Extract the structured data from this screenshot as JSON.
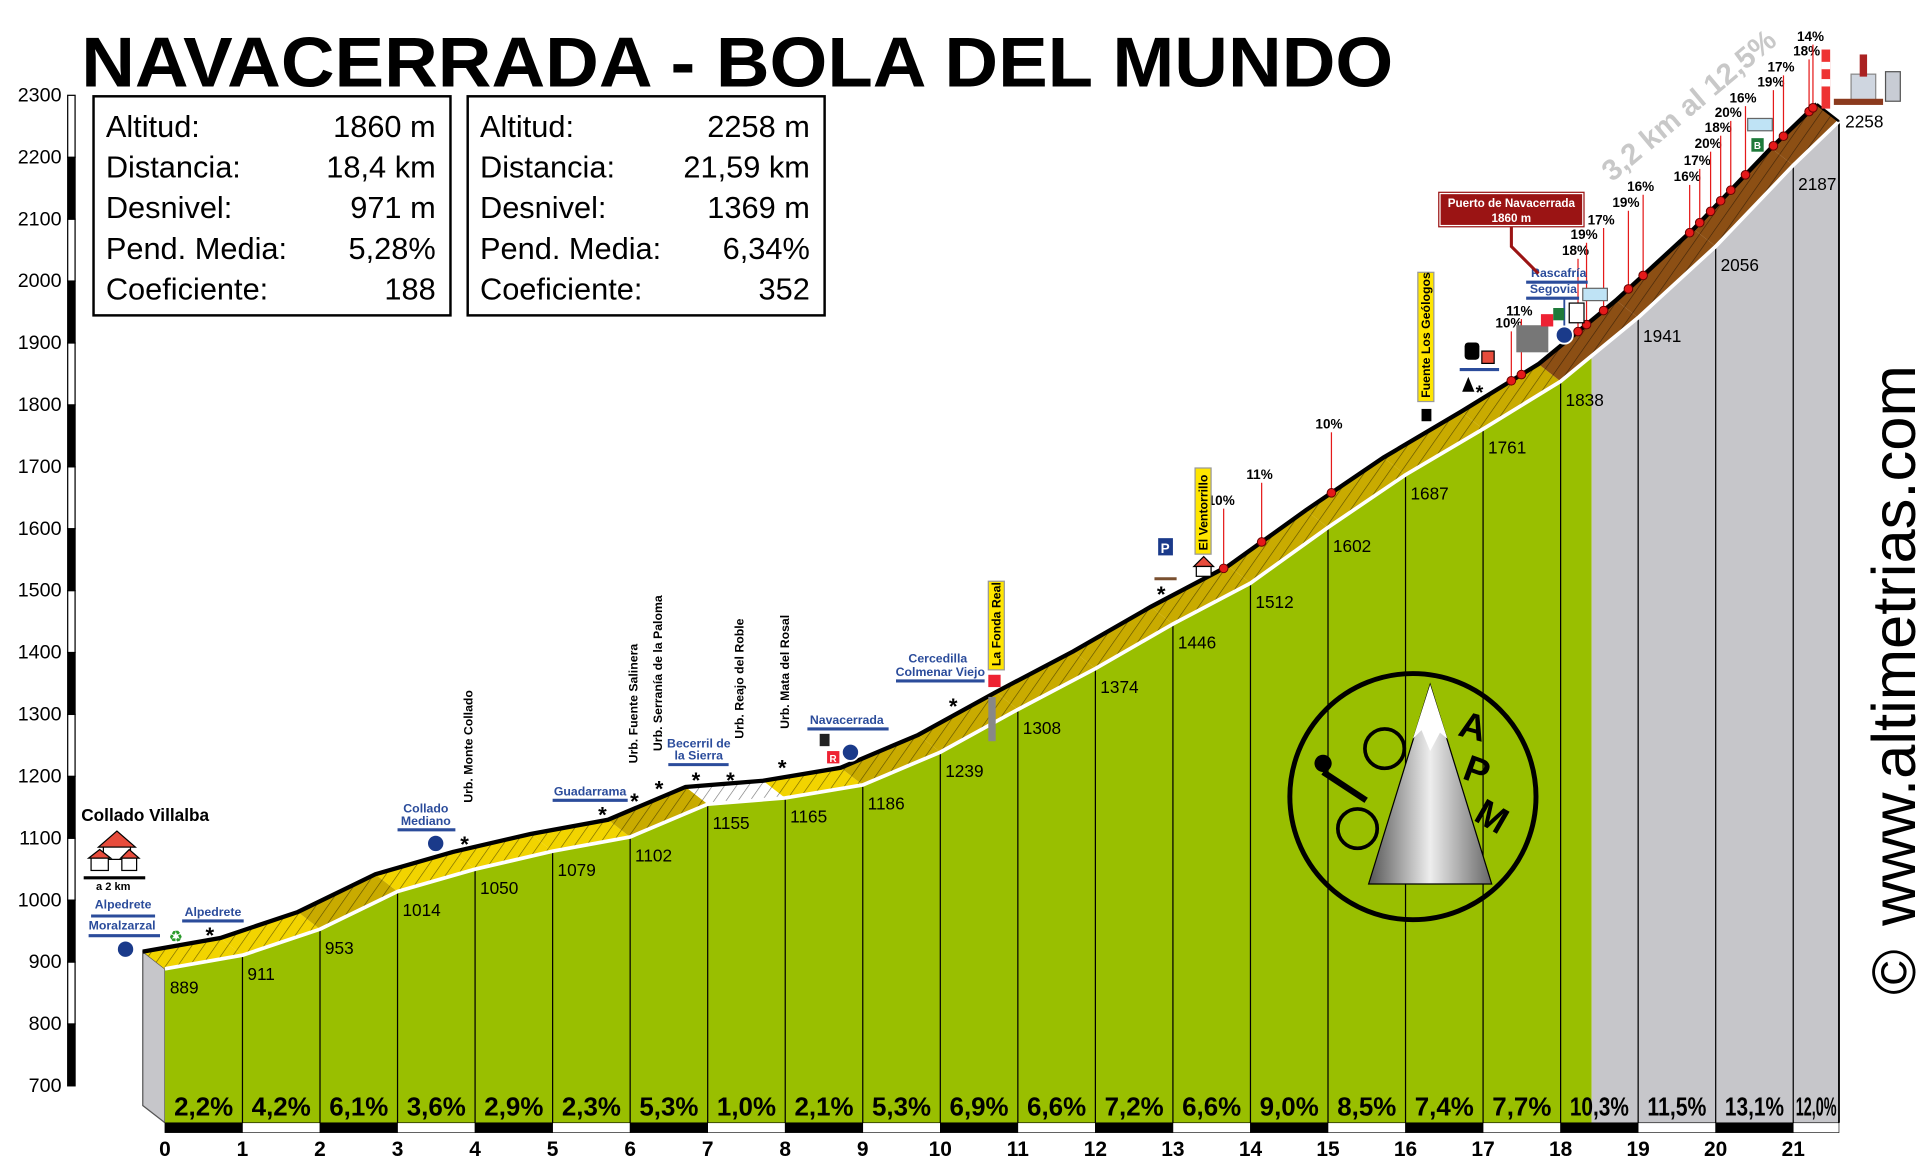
{
  "title": "NAVACERRADA - BOLA DEL MUNDO",
  "stats": [
    {
      "rows": [
        {
          "label": "Altitud:",
          "value": "1860 m"
        },
        {
          "label": "Distancia:",
          "value": "18,4 km"
        },
        {
          "label": "Desnivel:",
          "value": "971 m"
        },
        {
          "label": "Pend. Media:",
          "value": "5,28%"
        },
        {
          "label": "Coeficiente:",
          "value": "188"
        }
      ]
    },
    {
      "rows": [
        {
          "label": "Altitud:",
          "value": "2258 m"
        },
        {
          "label": "Distancia:",
          "value": "21,59 km"
        },
        {
          "label": "Desnivel:",
          "value": "1369 m"
        },
        {
          "label": "Pend. Media:",
          "value": "6,34%"
        },
        {
          "label": "Coeficiente:",
          "value": "352"
        }
      ]
    }
  ],
  "chart_data": {
    "type": "area",
    "title": "NAVACERRADA - BOLA DEL MUNDO",
    "xlabel": "",
    "ylabel": "",
    "xlim": [
      0,
      21.59
    ],
    "ylim": [
      700,
      2300
    ],
    "grid": false,
    "y_ticks": [
      700,
      800,
      900,
      1000,
      1100,
      1200,
      1300,
      1400,
      1500,
      1600,
      1700,
      1800,
      1900,
      2000,
      2100,
      2200,
      2300
    ],
    "x_ticks": [
      0,
      1,
      2,
      3,
      4,
      5,
      6,
      7,
      8,
      9,
      10,
      11,
      12,
      13,
      14,
      15,
      16,
      17,
      18,
      19,
      20,
      21
    ],
    "km": [
      0,
      1,
      2,
      3,
      4,
      5,
      6,
      7,
      8,
      9,
      10,
      11,
      12,
      13,
      14,
      15,
      16,
      17,
      18,
      19,
      20,
      21,
      21.59
    ],
    "elevation": [
      889,
      911,
      953,
      1014,
      1050,
      1079,
      1102,
      1155,
      1165,
      1186,
      1239,
      1308,
      1374,
      1446,
      1512,
      1602,
      1687,
      1761,
      1838,
      1941,
      2056,
      2187,
      2258
    ],
    "segment_gradients": [
      2.2,
      4.2,
      6.1,
      3.6,
      2.9,
      2.3,
      5.3,
      1.0,
      2.1,
      5.3,
      6.9,
      6.6,
      7.2,
      6.6,
      9.0,
      8.5,
      7.4,
      7.7,
      10.3,
      11.5,
      13.1,
      12.0
    ],
    "segment_gradient_labels": [
      "2,2%",
      "4,2%",
      "6,1%",
      "3,6%",
      "2,9%",
      "2,3%",
      "5,3%",
      "1,0%",
      "2,1%",
      "5,3%",
      "6,9%",
      "6,6%",
      "7,2%",
      "6,6%",
      "9,0%",
      "8,5%",
      "7,4%",
      "7,7%",
      "10,3%",
      "11,5%",
      "13,1%",
      "12,0%"
    ],
    "climb_split_km": 18.4,
    "steep_points": [
      {
        "km": 13.94,
        "label": "10%"
      },
      {
        "km": 14.43,
        "label": "11%"
      },
      {
        "km": 15.33,
        "label": "10%"
      },
      {
        "km": 17.65,
        "label": "10%"
      },
      {
        "km": 17.78,
        "label": "11%"
      },
      {
        "km": 18.51,
        "label": "18%"
      },
      {
        "km": 18.62,
        "label": "19%"
      },
      {
        "km": 18.84,
        "label": "17%"
      },
      {
        "km": 19.16,
        "label": "19%"
      },
      {
        "km": 19.35,
        "label": "16%"
      },
      {
        "km": 19.95,
        "label": "16%"
      },
      {
        "km": 20.08,
        "label": "17%"
      },
      {
        "km": 20.22,
        "label": "20%"
      },
      {
        "km": 20.35,
        "label": "18%"
      },
      {
        "km": 20.48,
        "label": "20%"
      },
      {
        "km": 20.67,
        "label": "16%"
      },
      {
        "km": 21.03,
        "label": "19%"
      },
      {
        "km": 21.16,
        "label": "17%"
      },
      {
        "km": 21.49,
        "label": "18%"
      },
      {
        "km": 21.54,
        "label": "14%"
      }
    ]
  },
  "annotations": {
    "start_town": "Collado Villalba",
    "start_distance": "a 2 km",
    "alpedrete_1": "Alpedrete",
    "moralzarzal": "Moralzarzal",
    "alpedrete_2": "Alpedrete",
    "collado_mediano_1": "Collado",
    "collado_mediano_2": "Mediano",
    "monte_collado": "Urb. Monte Collado",
    "guadarrama": "Guadarrama",
    "fuente_salinera": "Urb. Fuente Salinera",
    "serrania_paloma": "Urb. Serranía de la Paloma",
    "becerril_1": "Becerril de",
    "becerril_2": "la Sierra",
    "reajo_roble": "Urb. Reajo del Roble",
    "mata_rosal": "Urb. Mata del Rosal",
    "navacerrada": "Navacerrada",
    "cercedilla": "Cercedilla",
    "colmenar": "Colmenar Viejo",
    "fonda_real": "La Fonda Real",
    "parking": "P",
    "ventorrillo": "El Ventorrillo",
    "geologos": "Fuente Los Geólogos",
    "rascafria": "Rascafría",
    "segovia": "Segovia",
    "restaurant": "R",
    "bar": "B",
    "puerto_name": "Puerto de Navacerrada",
    "puerto_alt": "1860 m"
  },
  "slope_note": "3,2 km al 12,5%",
  "watermark": "www.altimetrias.com",
  "copyright": "©",
  "logo_text": "APM",
  "colors": {
    "front": "#99bf00",
    "final_section": "#c6c6ca",
    "crust_easy": "#f2d400",
    "crust_medium": "#c9ab00",
    "crust_steep": "#8c4f14",
    "signs": "#2b4c9b",
    "puerto_box": "#9b1414",
    "markers": "#e51a1a"
  }
}
